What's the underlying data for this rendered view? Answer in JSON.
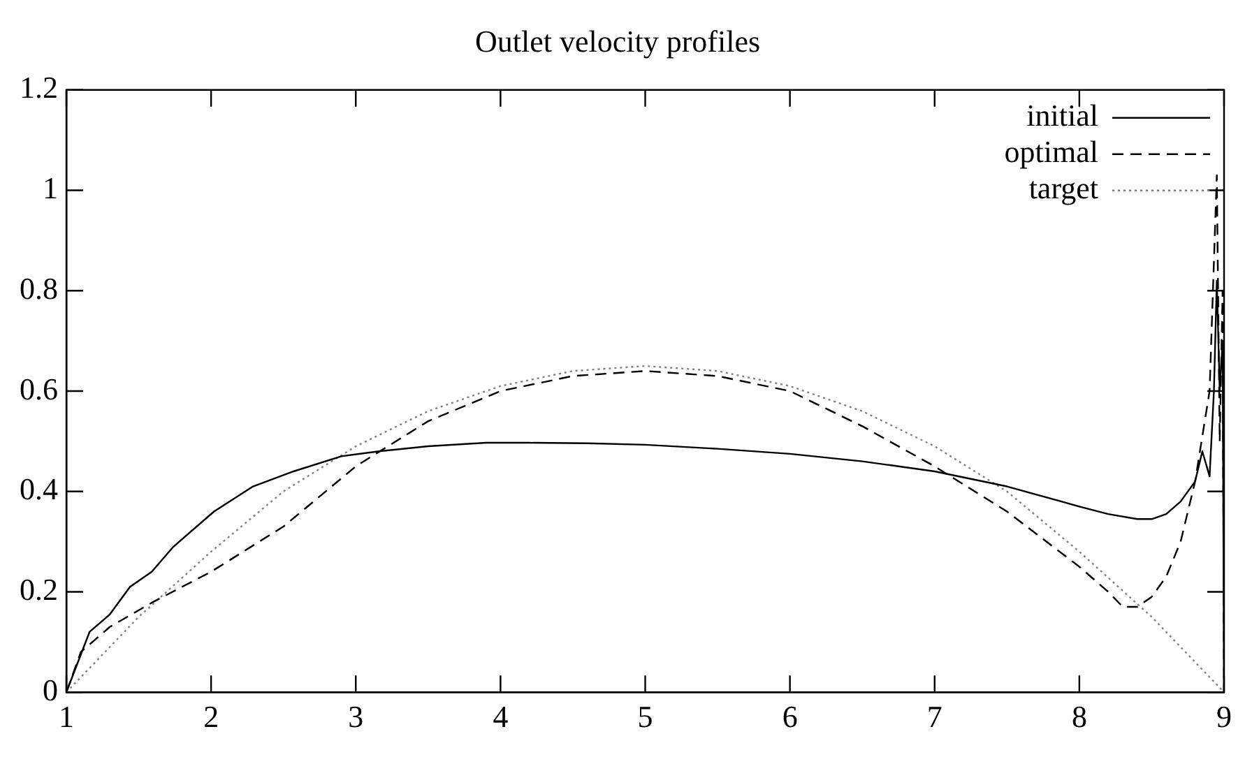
{
  "chart_data": {
    "type": "line",
    "title": "Outlet velocity profiles",
    "xlim": [
      1,
      9
    ],
    "ylim": [
      0,
      1.2
    ],
    "xticks": [
      1,
      2,
      3,
      4,
      5,
      6,
      7,
      8,
      9
    ],
    "yticks": [
      0,
      0.2,
      0.4,
      0.6,
      0.8,
      1,
      1.2
    ],
    "legend": "top right",
    "marker": "none",
    "series": [
      {
        "name": "initial",
        "color": "#000000",
        "line_style": "solid",
        "x": [
          1,
          1.16,
          1.3,
          1.44,
          1.59,
          1.74,
          2.02,
          2.29,
          2.57,
          2.9,
          3.16,
          3.5,
          3.9,
          4.2,
          4.6,
          5,
          5.5,
          6,
          6.5,
          7,
          7.5,
          8,
          8.2,
          8.4,
          8.5,
          8.6,
          8.7,
          8.8,
          8.85,
          8.9,
          8.93,
          8.95,
          8.97,
          8.99,
          9
        ],
        "values": [
          0,
          0.12,
          0.155,
          0.21,
          0.24,
          0.29,
          0.36,
          0.41,
          0.44,
          0.47,
          0.48,
          0.49,
          0.497,
          0.497,
          0.496,
          0.493,
          0.485,
          0.475,
          0.46,
          0.44,
          0.41,
          0.37,
          0.355,
          0.345,
          0.345,
          0.355,
          0.38,
          0.42,
          0.48,
          0.43,
          0.6,
          0.82,
          0.6,
          0.7,
          0
        ]
      },
      {
        "name": "optimal",
        "color": "#000000",
        "line_style": "dashed",
        "x": [
          1,
          1.1,
          1.3,
          1.6,
          2,
          2.5,
          3,
          3.5,
          4,
          4.5,
          5,
          5.5,
          6,
          6.5,
          7,
          7.5,
          8,
          8.2,
          8.3,
          8.4,
          8.5,
          8.6,
          8.7,
          8.8,
          8.9,
          8.95,
          8.97,
          8.99,
          9
        ],
        "values": [
          0,
          0.08,
          0.13,
          0.18,
          0.24,
          0.33,
          0.45,
          0.54,
          0.6,
          0.63,
          0.64,
          0.63,
          0.6,
          0.53,
          0.45,
          0.36,
          0.25,
          0.2,
          0.17,
          0.17,
          0.19,
          0.23,
          0.3,
          0.42,
          0.6,
          1.03,
          0.5,
          0.8,
          0
        ]
      },
      {
        "name": "target",
        "color": "#808080",
        "line_style": "dotted",
        "x": [
          1,
          1.5,
          2,
          2.5,
          3,
          3.5,
          4,
          4.5,
          5,
          5.5,
          6,
          6.5,
          7,
          7.5,
          8,
          8.5,
          9
        ],
        "values": [
          0,
          0.15,
          0.28,
          0.4,
          0.49,
          0.56,
          0.61,
          0.64,
          0.65,
          0.64,
          0.61,
          0.56,
          0.49,
          0.4,
          0.28,
          0.15,
          0
        ]
      }
    ]
  }
}
